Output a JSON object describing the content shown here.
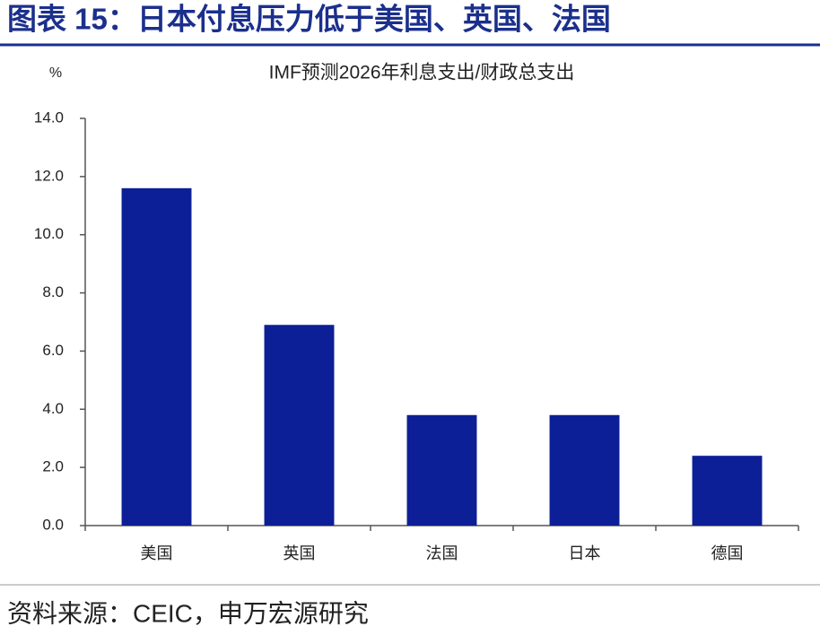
{
  "header": {
    "title": "图表 15：日本付息压力低于美国、英国、法国"
  },
  "chart_data": {
    "type": "bar",
    "title": "IMF预测2026年利息支出/财政总支出",
    "y_unit": "%",
    "categories": [
      "美国",
      "英国",
      "法国",
      "日本",
      "德国"
    ],
    "values": [
      11.6,
      6.9,
      3.8,
      3.8,
      2.4
    ],
    "color": "#0d1f96",
    "ylim": [
      0,
      14
    ],
    "yticks": [
      {
        "value": 0,
        "label": "0.0"
      },
      {
        "value": 2,
        "label": "2.0"
      },
      {
        "value": 4,
        "label": "4.0"
      },
      {
        "value": 6,
        "label": "6.0"
      },
      {
        "value": 8,
        "label": "8.0"
      },
      {
        "value": 10,
        "label": "10.0"
      },
      {
        "value": 12,
        "label": "12.0"
      },
      {
        "value": 14,
        "label": "14.0"
      }
    ],
    "grid": false
  },
  "footer": {
    "source": "资料来源：CEIC，申万宏源研究"
  }
}
